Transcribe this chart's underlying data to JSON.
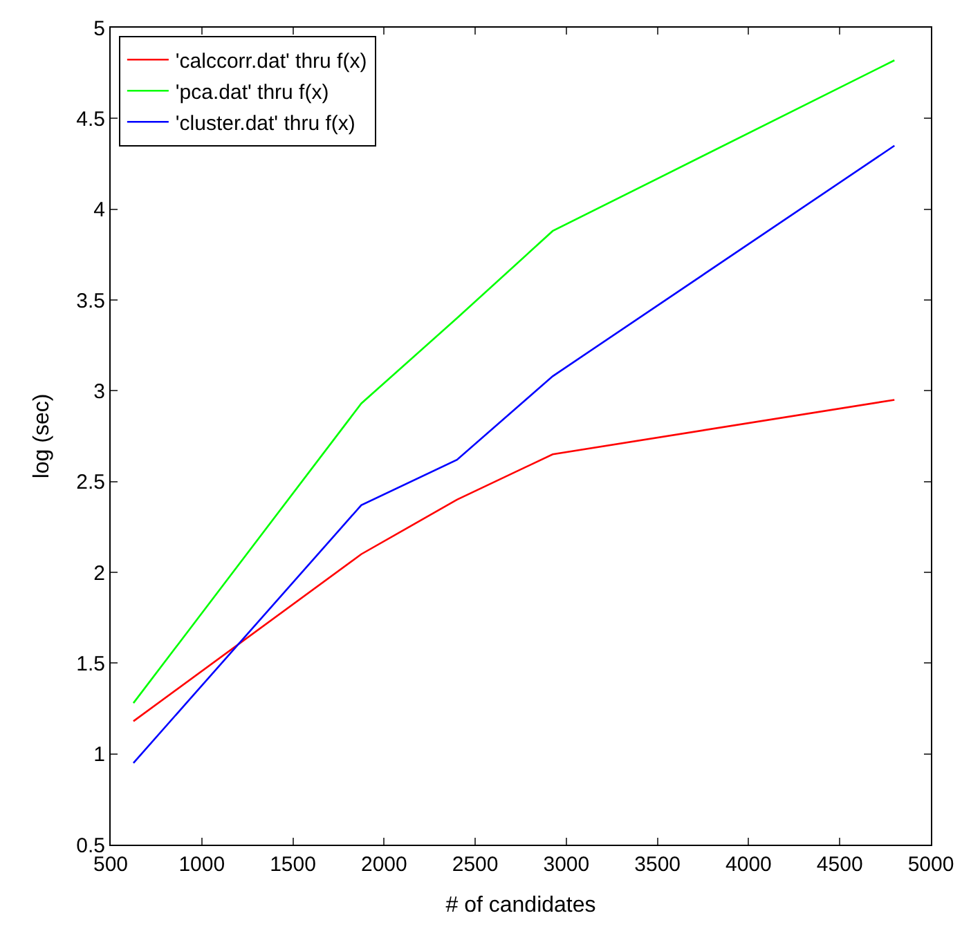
{
  "chart_data": {
    "type": "line",
    "xlabel": "# of candidates",
    "ylabel": "log (sec)",
    "x": [
      625,
      1875,
      2400,
      2925,
      4800
    ],
    "series": [
      {
        "name": "'calccorr.dat' thru f(x)",
        "color": "#ff0000",
        "values": [
          1.18,
          2.1,
          2.4,
          2.65,
          2.95
        ]
      },
      {
        "name": "'pca.dat' thru f(x)",
        "color": "#00ff00",
        "values": [
          1.28,
          2.93,
          3.4,
          3.88,
          4.82
        ]
      },
      {
        "name": "'cluster.dat' thru f(x)",
        "color": "#0000ff",
        "values": [
          0.95,
          2.37,
          2.62,
          3.08,
          4.35
        ]
      }
    ],
    "xlim": [
      500,
      5000
    ],
    "xticks": [
      500,
      1000,
      1500,
      2000,
      2500,
      3000,
      3500,
      4000,
      4500,
      5000
    ],
    "ylim": [
      0.5,
      5
    ],
    "yticks": [
      0.5,
      1,
      1.5,
      2,
      2.5,
      3,
      3.5,
      4,
      4.5,
      5
    ],
    "legend": "top left",
    "marker": "none",
    "line_style": "solid"
  }
}
